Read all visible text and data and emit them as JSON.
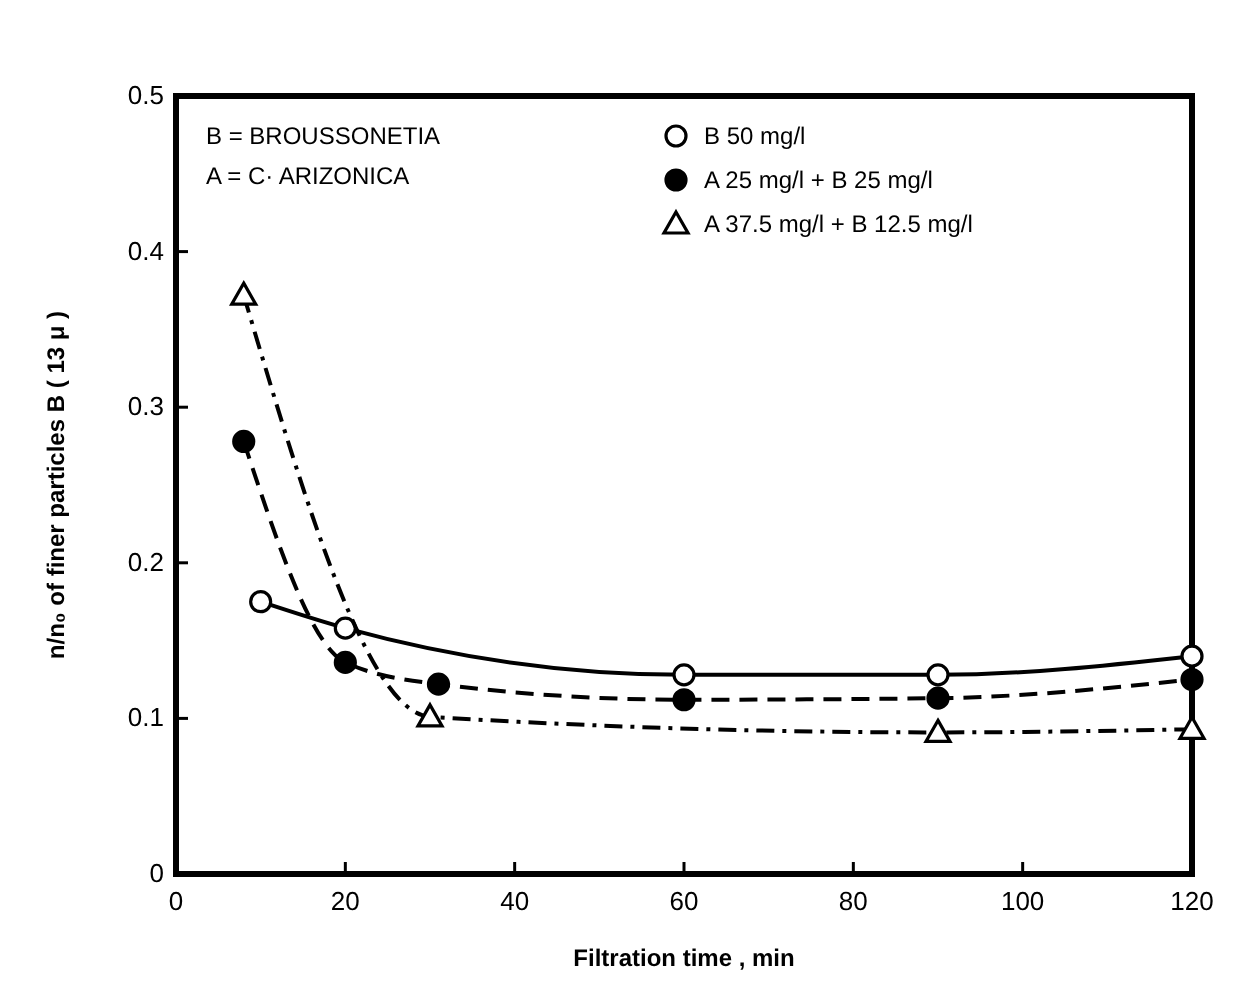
{
  "chart_data": {
    "type": "line",
    "xlabel": "Filtration time , min",
    "ylabel": "n/n₀ of finer particles B ( 13 μ )",
    "xlim": [
      0,
      120
    ],
    "xticks": [
      0,
      20,
      40,
      60,
      80,
      100,
      120
    ],
    "ylim": [
      0,
      0.5
    ],
    "yticks": [
      0,
      0.1,
      0.2,
      0.3,
      0.4,
      0.5
    ],
    "grid": false,
    "legend": "top right",
    "annotations": [
      "B = BROUSSONETIA",
      "A = C· ARIZONICA"
    ],
    "series": [
      {
        "name": "B 50 mg/l",
        "color": "#ffffff",
        "marker": "circle",
        "line_style": "solid",
        "x": [
          10,
          20,
          60,
          90,
          120
        ],
        "values": [
          0.175,
          0.158,
          0.128,
          0.128,
          0.14
        ]
      },
      {
        "name": "A 25 mg/l + B 25 mg/l",
        "color": "#000000",
        "marker": "circle",
        "line_style": "dashed",
        "x": [
          8,
          20,
          31,
          60,
          90,
          120
        ],
        "values": [
          0.278,
          0.136,
          0.122,
          0.112,
          0.113,
          0.125
        ]
      },
      {
        "name": "A 37.5 mg/l + B 12.5 mg/l",
        "color": "#ffffff",
        "marker": "triangle",
        "line_style": "dashdot",
        "x": [
          8,
          30,
          90,
          120
        ],
        "values": [
          0.372,
          0.101,
          0.091,
          0.093
        ]
      }
    ]
  }
}
